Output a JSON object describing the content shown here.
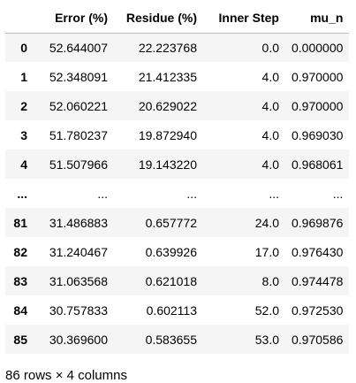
{
  "table": {
    "columns": [
      "",
      "Error (%)",
      "Residue (%)",
      "Inner Step",
      "mu_n"
    ],
    "rows": [
      {
        "index": "0",
        "cells": [
          "52.644007",
          "22.223768",
          "0.0",
          "0.000000"
        ]
      },
      {
        "index": "1",
        "cells": [
          "52.348091",
          "21.412335",
          "4.0",
          "0.970000"
        ]
      },
      {
        "index": "2",
        "cells": [
          "52.060221",
          "20.629022",
          "4.0",
          "0.970000"
        ]
      },
      {
        "index": "3",
        "cells": [
          "51.780237",
          "19.872940",
          "4.0",
          "0.969030"
        ]
      },
      {
        "index": "4",
        "cells": [
          "51.507966",
          "19.143220",
          "4.0",
          "0.968061"
        ]
      },
      {
        "index": "...",
        "cells": [
          "...",
          "...",
          "...",
          "..."
        ]
      },
      {
        "index": "81",
        "cells": [
          "31.486883",
          "0.657772",
          "24.0",
          "0.969876"
        ]
      },
      {
        "index": "82",
        "cells": [
          "31.240467",
          "0.639926",
          "17.0",
          "0.976430"
        ]
      },
      {
        "index": "83",
        "cells": [
          "31.063568",
          "0.621018",
          "8.0",
          "0.974478"
        ]
      },
      {
        "index": "84",
        "cells": [
          "30.757833",
          "0.602113",
          "52.0",
          "0.972530"
        ]
      },
      {
        "index": "85",
        "cells": [
          "30.369600",
          "0.583655",
          "53.0",
          "0.970586"
        ]
      }
    ]
  },
  "shape_text": "86 rows × 4 columns",
  "colors": {
    "stripe": "#f5f5f5",
    "header_rule": "#bdbdbd"
  }
}
